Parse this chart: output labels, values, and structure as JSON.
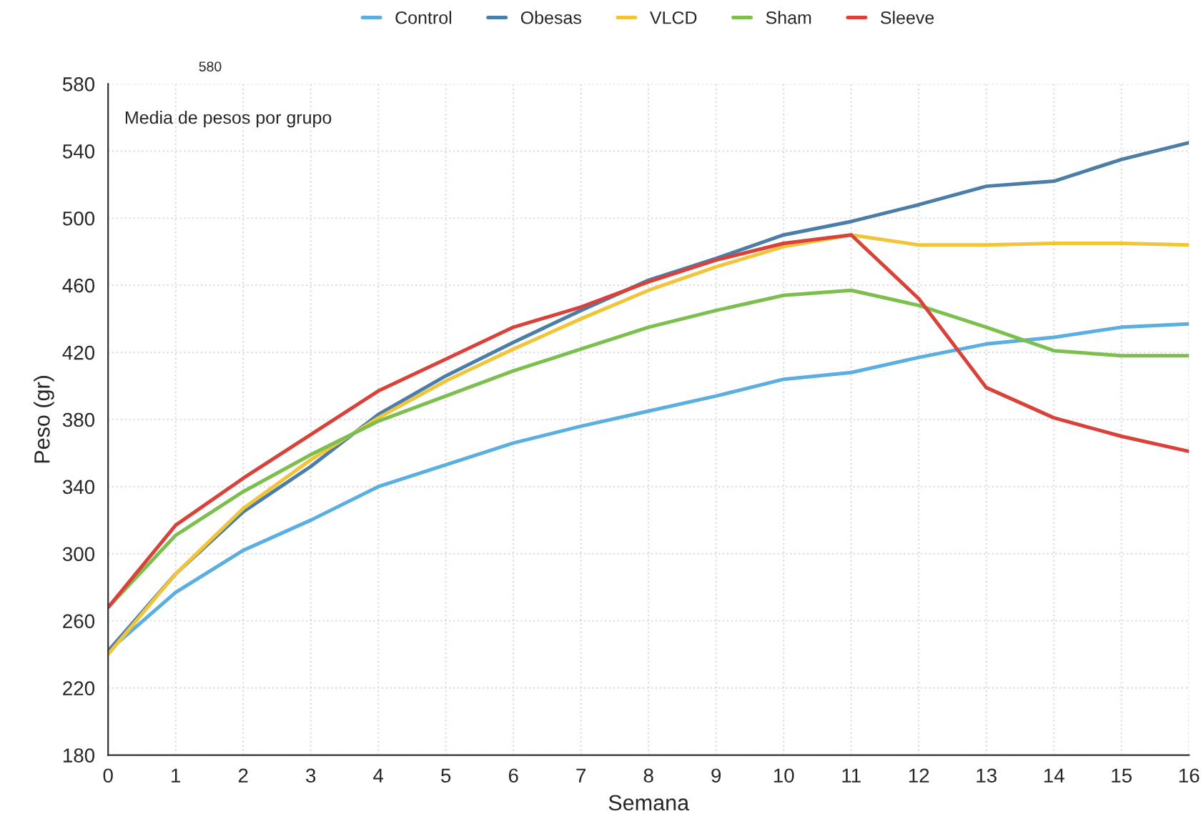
{
  "chart_data": {
    "type": "line",
    "xlabel": "Semana",
    "ylabel": "Peso (gr)",
    "annotations": [
      "580",
      "Media de pesos por grupo"
    ],
    "x": [
      0,
      1,
      2,
      3,
      4,
      5,
      6,
      7,
      8,
      9,
      10,
      11,
      12,
      13,
      14,
      15,
      16
    ],
    "xlim": [
      0,
      16
    ],
    "xticks": [
      0,
      1,
      2,
      3,
      4,
      5,
      6,
      7,
      8,
      9,
      10,
      11,
      12,
      13,
      14,
      15,
      16
    ],
    "ylim": [
      180,
      580
    ],
    "yticks": [
      180,
      220,
      260,
      300,
      340,
      380,
      420,
      460,
      500,
      540,
      580
    ],
    "grid": true,
    "legend": "top",
    "marker": "none",
    "line_style": "solid",
    "series": [
      {
        "name": "Control",
        "color": "#5aaee0",
        "values": [
          242,
          277,
          302,
          320,
          340,
          353,
          366,
          376,
          385,
          394,
          404,
          408,
          417,
          425,
          429,
          435,
          437
        ]
      },
      {
        "name": "Obesas",
        "color": "#4a7ea8",
        "values": [
          242,
          288,
          325,
          352,
          383,
          406,
          426,
          445,
          463,
          476,
          490,
          498,
          508,
          519,
          522,
          535,
          545
        ]
      },
      {
        "name": "VLCD",
        "color": "#f2c43a",
        "values": [
          240,
          288,
          327,
          356,
          381,
          403,
          422,
          440,
          457,
          471,
          483,
          490,
          484,
          484,
          485,
          485,
          484
        ]
      },
      {
        "name": "Sham",
        "color": "#7cbf4e",
        "values": [
          268,
          311,
          337,
          359,
          379,
          394,
          409,
          422,
          435,
          445,
          454,
          457,
          448,
          435,
          421,
          418,
          418
        ]
      },
      {
        "name": "Sleeve",
        "color": "#d9423a",
        "values": [
          268,
          317,
          345,
          371,
          397,
          416,
          435,
          447,
          462,
          475,
          485,
          490,
          452,
          399,
          381,
          370,
          361
        ]
      }
    ]
  }
}
